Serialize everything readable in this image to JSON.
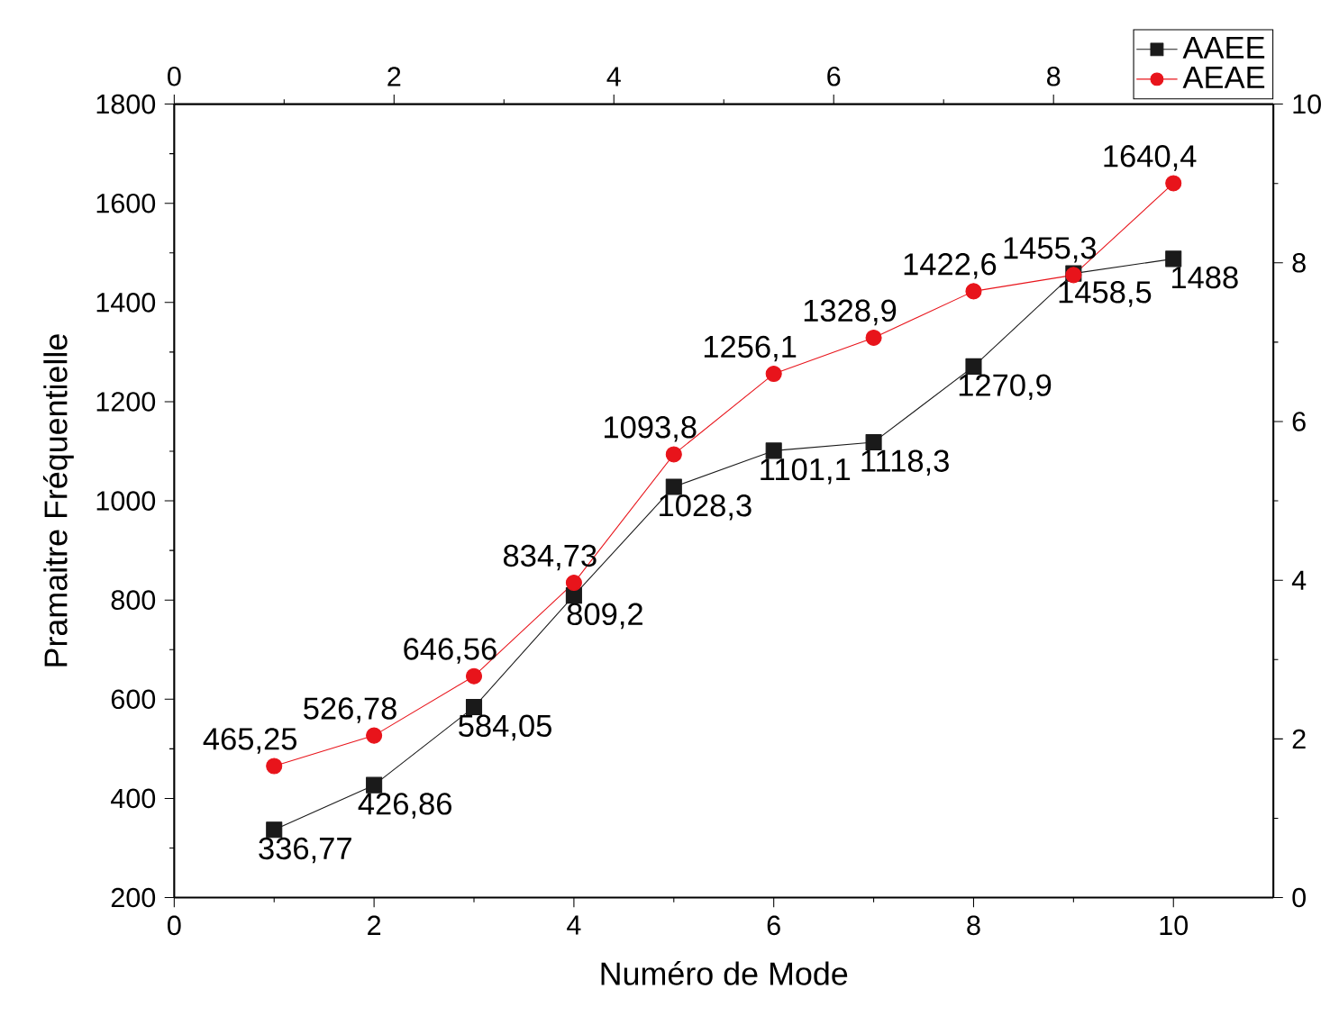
{
  "chart_data": {
    "type": "line",
    "xlabel": "Numéro de Mode",
    "ylabel": "Pramaitre Fréquentielle",
    "x": [
      1,
      2,
      3,
      4,
      5,
      6,
      7,
      8,
      9,
      10
    ],
    "series": [
      {
        "name": "AAEE",
        "color": "#1a1a1a",
        "marker": "square",
        "values": [
          336.77,
          426.86,
          584.05,
          809.2,
          1028.3,
          1101.1,
          1118.3,
          1270.9,
          1458.5,
          1488
        ],
        "value_labels": [
          "336,77",
          "426,86",
          "584,05",
          "809,2",
          "1028,3",
          "1101,1",
          "1118,3",
          "1270,9",
          "1458,5",
          "1488"
        ]
      },
      {
        "name": "AEAE",
        "color": "#e8141b",
        "marker": "circle",
        "values": [
          465.25,
          526.78,
          646.56,
          834.73,
          1093.8,
          1256.1,
          1328.9,
          1422.6,
          1455.3,
          1640.4
        ],
        "value_labels": [
          "465,25",
          "526,78",
          "646,56",
          "834,73",
          "1093,8",
          "1256,1",
          "1328,9",
          "1422,6",
          "1455,3",
          "1640,4"
        ]
      }
    ],
    "xlim": [
      0,
      11
    ],
    "xticks": [
      0,
      2,
      4,
      6,
      8,
      10
    ],
    "ylim": [
      200,
      1800
    ],
    "yticks": [
      200,
      400,
      600,
      800,
      1000,
      1200,
      1400,
      1600,
      1800
    ],
    "x2lim": [
      0,
      10
    ],
    "x2ticks": [
      0,
      2,
      4,
      6,
      8
    ],
    "y2lim": [
      0,
      10
    ],
    "y2ticks": [
      0,
      2,
      4,
      6,
      8,
      10
    ],
    "grid": false,
    "legend": "top right",
    "line_style": "solid"
  }
}
